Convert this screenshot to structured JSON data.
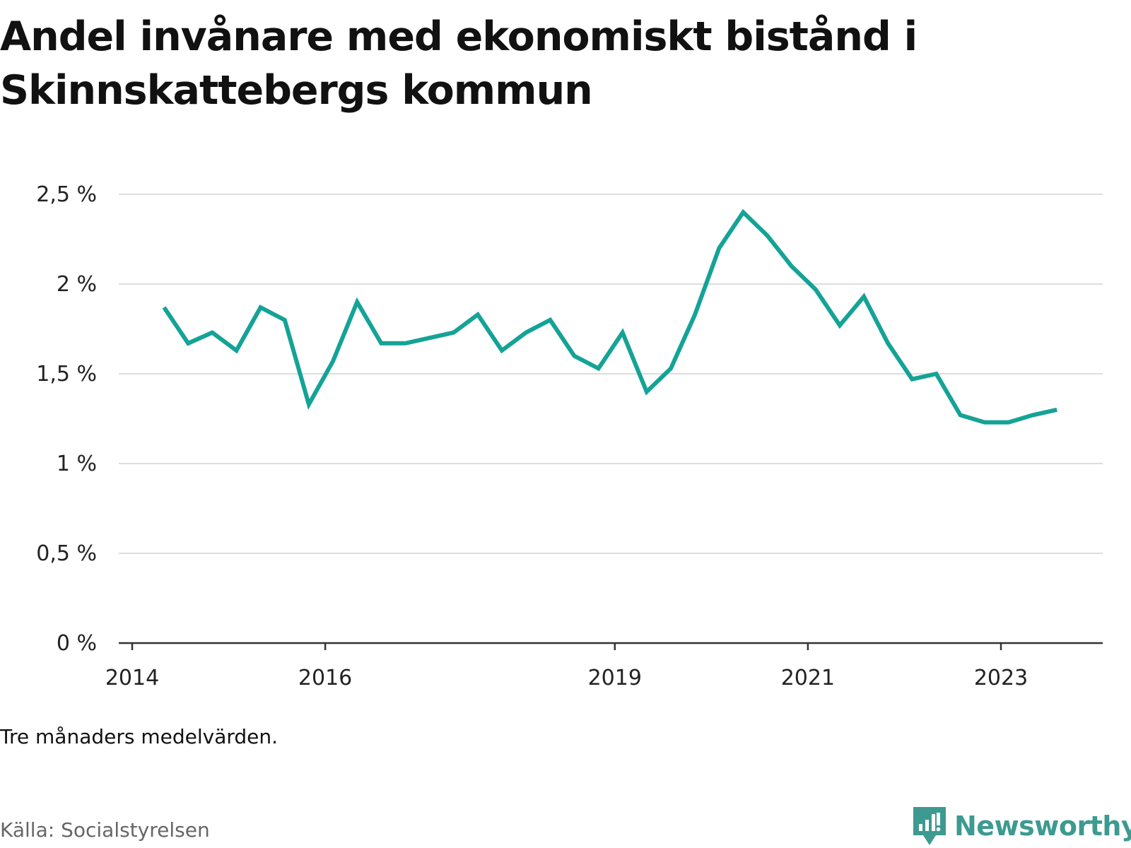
{
  "title": "Andel invånare med ekonomiskt bistånd i Skinnskattebergs kommun",
  "note": "Tre månaders medelvärden.",
  "source": "Källa: Socialstyrelsen",
  "brand": {
    "name": "Newsworthy",
    "color": "#3d9a91"
  },
  "chart_data": {
    "type": "line",
    "title": "Andel invånare med ekonomiskt bistånd i Skinnskattebergs kommun",
    "xlabel": "",
    "ylabel": "",
    "line_color": "#14a396",
    "grid": true,
    "ylim": [
      0,
      2.5
    ],
    "xlim": [
      2014.0,
      2024.25
    ],
    "y_ticks": [
      {
        "value": 0,
        "label": "0 %"
      },
      {
        "value": 0.5,
        "label": "0,5 %"
      },
      {
        "value": 1,
        "label": "1 %"
      },
      {
        "value": 1.5,
        "label": "1,5 %"
      },
      {
        "value": 2,
        "label": "2 %"
      },
      {
        "value": 2.5,
        "label": "2,5 %"
      }
    ],
    "x_ticks": [
      {
        "value": 2014,
        "label": "2014"
      },
      {
        "value": 2016,
        "label": "2016"
      },
      {
        "value": 2019,
        "label": "2019"
      },
      {
        "value": 2021,
        "label": "2021"
      },
      {
        "value": 2023,
        "label": "2023"
      }
    ],
    "series": [
      {
        "name": "",
        "points": [
          {
            "x": 2014.33,
            "y": 1.87
          },
          {
            "x": 2014.58,
            "y": 1.67
          },
          {
            "x": 2014.83,
            "y": 1.73
          },
          {
            "x": 2015.08,
            "y": 1.63
          },
          {
            "x": 2015.33,
            "y": 1.87
          },
          {
            "x": 2015.58,
            "y": 1.8
          },
          {
            "x": 2015.83,
            "y": 1.33
          },
          {
            "x": 2016.08,
            "y": 1.57
          },
          {
            "x": 2016.33,
            "y": 1.9
          },
          {
            "x": 2016.58,
            "y": 1.67
          },
          {
            "x": 2016.83,
            "y": 1.67
          },
          {
            "x": 2017.08,
            "y": 1.7
          },
          {
            "x": 2017.33,
            "y": 1.73
          },
          {
            "x": 2017.58,
            "y": 1.83
          },
          {
            "x": 2017.83,
            "y": 1.63
          },
          {
            "x": 2018.08,
            "y": 1.73
          },
          {
            "x": 2018.33,
            "y": 1.8
          },
          {
            "x": 2018.58,
            "y": 1.6
          },
          {
            "x": 2018.83,
            "y": 1.53
          },
          {
            "x": 2019.08,
            "y": 1.73
          },
          {
            "x": 2019.33,
            "y": 1.4
          },
          {
            "x": 2019.58,
            "y": 1.53
          },
          {
            "x": 2019.83,
            "y": 1.83
          },
          {
            "x": 2020.08,
            "y": 2.2
          },
          {
            "x": 2020.33,
            "y": 2.4
          },
          {
            "x": 2020.58,
            "y": 2.27
          },
          {
            "x": 2020.83,
            "y": 2.1
          },
          {
            "x": 2021.08,
            "y": 1.97
          },
          {
            "x": 2021.33,
            "y": 1.77
          },
          {
            "x": 2021.58,
            "y": 1.93
          },
          {
            "x": 2021.83,
            "y": 1.67
          },
          {
            "x": 2022.08,
            "y": 1.47
          },
          {
            "x": 2022.33,
            "y": 1.5
          },
          {
            "x": 2022.58,
            "y": 1.27
          },
          {
            "x": 2022.83,
            "y": 1.23
          },
          {
            "x": 2023.08,
            "y": 1.23
          },
          {
            "x": 2023.33,
            "y": 1.27
          },
          {
            "x": 2023.58,
            "y": 1.3
          }
        ]
      }
    ]
  }
}
